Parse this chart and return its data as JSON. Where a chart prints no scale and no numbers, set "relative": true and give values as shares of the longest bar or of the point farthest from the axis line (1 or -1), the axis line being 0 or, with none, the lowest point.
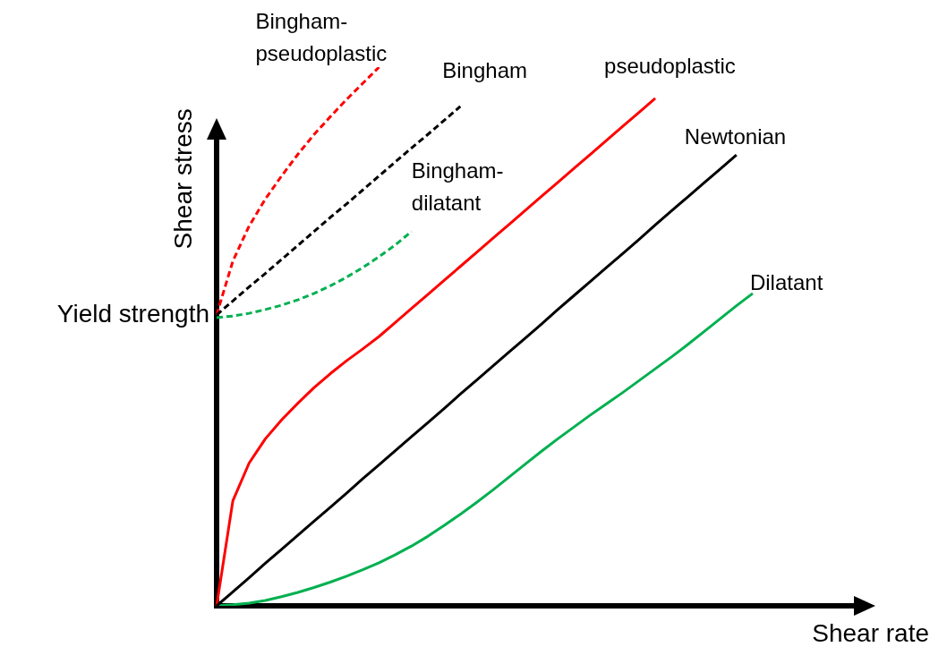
{
  "chart_data": {
    "type": "line",
    "relative": true,
    "xlabel": "Shear rate",
    "ylabel": "Shear stress",
    "annotations": [
      "Yield strength"
    ],
    "categories": [
      null,
      null,
      null,
      null,
      null,
      null,
      null,
      null,
      null,
      null,
      null,
      null,
      null,
      null,
      null,
      null,
      null,
      null,
      null,
      null,
      null,
      null,
      null,
      null,
      null,
      null,
      null,
      null,
      null,
      null,
      null,
      null,
      null,
      null,
      null,
      null,
      null,
      null,
      null,
      null,
      null
    ],
    "series": [
      {
        "name": "Newtonian",
        "color": "#000000",
        "values": [
          0,
          0.026,
          0.052,
          0.079,
          0.105,
          0.131,
          0.157,
          0.183,
          0.209,
          0.236,
          0.262,
          0.288,
          0.314,
          0.34,
          0.366,
          0.393,
          0.419,
          0.445,
          0.471,
          0.497,
          0.523,
          0.55,
          0.576,
          0.602,
          0.628,
          0.654,
          0.68,
          0.707,
          0.733,
          0.759,
          0.785,
          0.811,
          0.837,
          null,
          null,
          null,
          null,
          null,
          null,
          null,
          null
        ]
      },
      {
        "name": "pseudoplastic",
        "color": "#ff0000",
        "values": [
          0,
          0.195,
          0.265,
          0.31,
          0.345,
          0.376,
          0.405,
          0.431,
          0.455,
          0.477,
          0.5,
          0.526,
          0.552,
          0.578,
          0.604,
          0.63,
          0.656,
          0.682,
          0.708,
          0.734,
          0.76,
          0.786,
          0.812,
          0.838,
          0.864,
          0.89,
          0.916,
          0.942,
          null,
          null,
          null,
          null,
          null,
          null,
          null,
          null,
          null,
          null,
          null,
          null,
          null
        ]
      },
      {
        "name": "Dilatant",
        "color": "#00b050",
        "values": [
          0,
          0.002,
          0.005,
          0.01,
          0.017,
          0.025,
          0.034,
          0.044,
          0.055,
          0.067,
          0.08,
          0.095,
          0.111,
          0.129,
          0.149,
          0.17,
          0.192,
          0.215,
          0.239,
          0.263,
          0.287,
          0.31,
          0.332,
          0.354,
          0.375,
          0.396,
          0.418,
          0.44,
          0.462,
          0.485,
          0.509,
          0.533,
          0.557,
          0.58,
          null,
          null,
          null,
          null,
          null,
          null,
          null
        ]
      },
      {
        "name": "Bingham",
        "color": "#000000",
        "line_style": "dashed",
        "values": [
          0.54,
          0.566,
          0.592,
          0.617,
          0.643,
          0.669,
          0.695,
          0.721,
          0.746,
          0.772,
          0.798,
          0.824,
          0.85,
          0.875,
          0.901,
          0.927,
          null,
          null,
          null,
          null,
          null,
          null,
          null,
          null,
          null,
          null,
          null,
          null,
          null,
          null,
          null,
          null,
          null,
          null,
          null,
          null,
          null,
          null,
          null,
          null,
          null
        ]
      },
      {
        "name": "Bingham-pseudoplastic",
        "color": "#ff0000",
        "line_style": "dashed",
        "values": [
          0.54,
          0.64,
          0.705,
          0.755,
          0.798,
          0.838,
          0.875,
          0.908,
          0.94,
          0.97,
          1,
          null,
          null,
          null,
          null,
          null,
          null,
          null,
          null,
          null,
          null,
          null,
          null,
          null,
          null,
          null,
          null,
          null,
          null,
          null,
          null,
          null,
          null,
          null,
          null,
          null,
          null,
          null,
          null,
          null,
          null
        ]
      },
      {
        "name": "Bingham-dilatant",
        "color": "#00b050",
        "line_style": "dashed",
        "values": [
          0.535,
          0.538,
          0.543,
          0.55,
          0.558,
          0.568,
          0.58,
          0.594,
          0.61,
          0.628,
          0.648,
          0.67,
          0.695,
          null,
          null,
          null,
          null,
          null,
          null,
          null,
          null,
          null,
          null,
          null,
          null,
          null,
          null,
          null,
          null,
          null,
          null,
          null,
          null,
          null,
          null,
          null,
          null,
          null,
          null,
          null,
          null
        ]
      }
    ]
  }
}
